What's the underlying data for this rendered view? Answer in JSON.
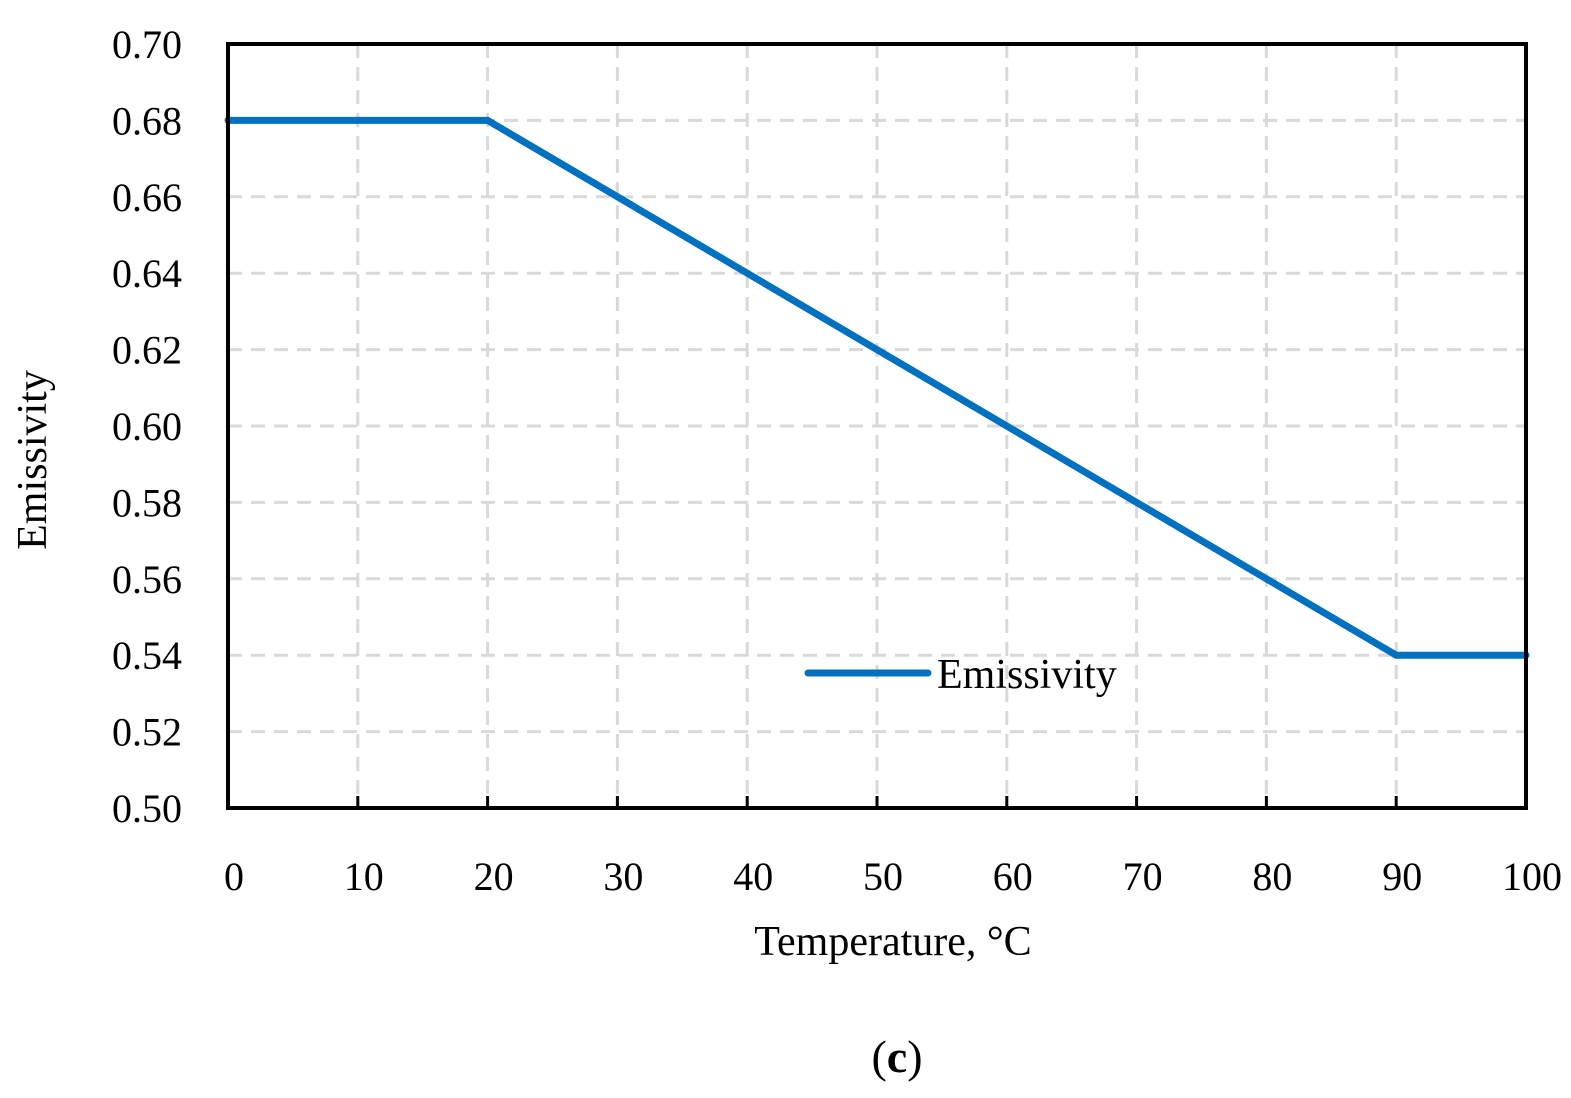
{
  "chart_data": {
    "type": "line",
    "title": "",
    "xlabel": "Temperature, °C",
    "ylabel": "Emissivity",
    "xlim": [
      0,
      100
    ],
    "ylim": [
      0.5,
      0.7
    ],
    "x_ticks": [
      "0",
      "10",
      "20",
      "30",
      "40",
      "50",
      "60",
      "70",
      "80",
      "90",
      "100"
    ],
    "y_ticks": [
      "0.50",
      "0.52",
      "0.54",
      "0.56",
      "0.58",
      "0.60",
      "0.62",
      "0.64",
      "0.66",
      "0.68",
      "0.70"
    ],
    "grid": true,
    "legend_position": "bottom-center",
    "series": [
      {
        "name": "Emissivity",
        "color": "#0070c0",
        "x": [
          0,
          20,
          90,
          100
        ],
        "y": [
          0.68,
          0.68,
          0.54,
          0.54
        ]
      }
    ]
  },
  "caption": {
    "open": "(",
    "letter": "c",
    "close": ")"
  }
}
